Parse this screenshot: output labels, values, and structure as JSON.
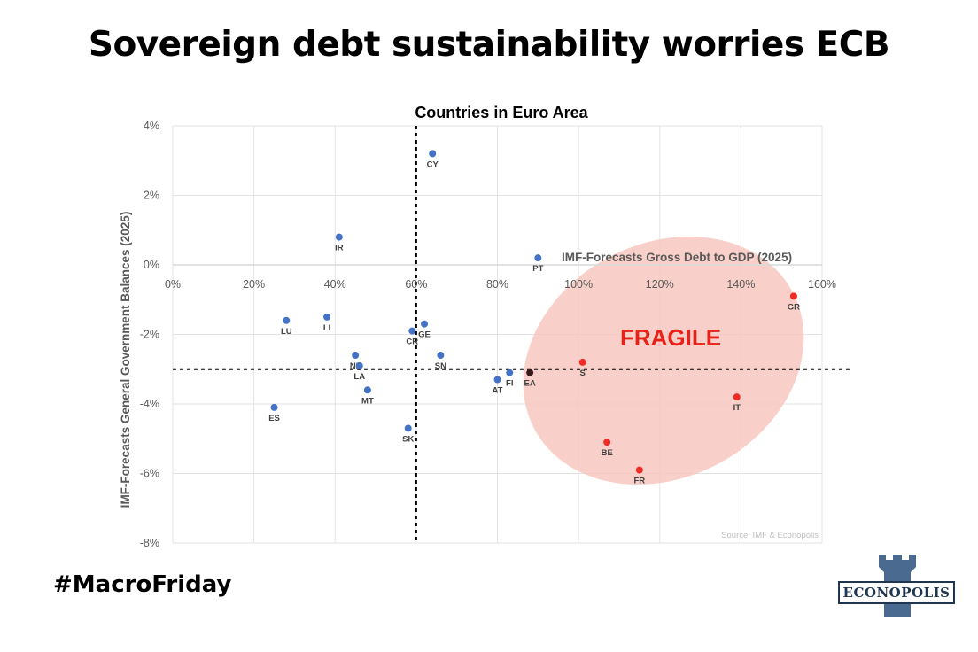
{
  "headline": "Sovereign debt sustainability worries ECB",
  "hashtag": "#MacroFriday",
  "logo_text": "ECONOPOLIS",
  "colors": {
    "normal_point": "#4472c4",
    "fragile_point": "#ee2b24",
    "ea_point": "#3a1a1a",
    "fragile_ellipse": "#f8c8c0",
    "fragile_label": "#e8201a",
    "logo": "#4a6b8f"
  },
  "chart_data": {
    "type": "scatter",
    "title": "Countries in Euro Area",
    "xlabel": "IMF-Forecasts Gross Debt to GDP (2025)",
    "ylabel": "IMF-Forecasts General Government Balances (2025)",
    "xlim": [
      0,
      160
    ],
    "ylim": [
      -8,
      4
    ],
    "x_ticks": [
      0,
      20,
      40,
      60,
      80,
      100,
      120,
      140,
      160
    ],
    "x_tick_labels": [
      "0%",
      "20%",
      "40%",
      "60%",
      "80%",
      "100%",
      "120%",
      "140%",
      "160%"
    ],
    "y_ticks": [
      4,
      2,
      0,
      -2,
      -4,
      -6,
      -8
    ],
    "y_tick_labels": [
      "4%",
      "2%",
      "0%",
      "-2%",
      "-4%",
      "-6%",
      "-8%"
    ],
    "grid": true,
    "x_axis_position": "y=0",
    "reference_lines": {
      "vertical_x": 60,
      "horizontal_y": -3
    },
    "annotation": "FRAGILE",
    "source": "Source: IMF  & Econopolis",
    "points": [
      {
        "label": "CY",
        "x": 64,
        "y": 3.2,
        "group": "normal"
      },
      {
        "label": "IR",
        "x": 41,
        "y": 0.8,
        "group": "normal"
      },
      {
        "label": "PT",
        "x": 90,
        "y": 0.2,
        "group": "normal"
      },
      {
        "label": "GR",
        "x": 153,
        "y": -0.9,
        "group": "fragile"
      },
      {
        "label": "LU",
        "x": 28,
        "y": -1.6,
        "group": "normal"
      },
      {
        "label": "LI",
        "x": 38,
        "y": -1.5,
        "group": "normal"
      },
      {
        "label": "GE",
        "x": 62,
        "y": -1.7,
        "group": "normal"
      },
      {
        "label": "CR",
        "x": 59,
        "y": -1.9,
        "group": "normal"
      },
      {
        "label": "NL",
        "x": 45,
        "y": -2.6,
        "group": "normal"
      },
      {
        "label": "SN",
        "x": 66,
        "y": -2.6,
        "group": "normal"
      },
      {
        "label": "LA",
        "x": 46,
        "y": -2.9,
        "group": "normal"
      },
      {
        "label": "S",
        "x": 101,
        "y": -2.8,
        "group": "fragile"
      },
      {
        "label": "FI",
        "x": 83,
        "y": -3.1,
        "group": "normal"
      },
      {
        "label": "EA",
        "x": 88,
        "y": -3.1,
        "group": "ea"
      },
      {
        "label": "AT",
        "x": 80,
        "y": -3.3,
        "group": "normal"
      },
      {
        "label": "MT",
        "x": 48,
        "y": -3.6,
        "group": "normal"
      },
      {
        "label": "IT",
        "x": 139,
        "y": -3.8,
        "group": "fragile"
      },
      {
        "label": "ES",
        "x": 25,
        "y": -4.1,
        "group": "normal"
      },
      {
        "label": "SK",
        "x": 58,
        "y": -4.7,
        "group": "normal"
      },
      {
        "label": "BE",
        "x": 107,
        "y": -5.1,
        "group": "fragile"
      },
      {
        "label": "FR",
        "x": 115,
        "y": -5.9,
        "group": "fragile"
      }
    ]
  }
}
